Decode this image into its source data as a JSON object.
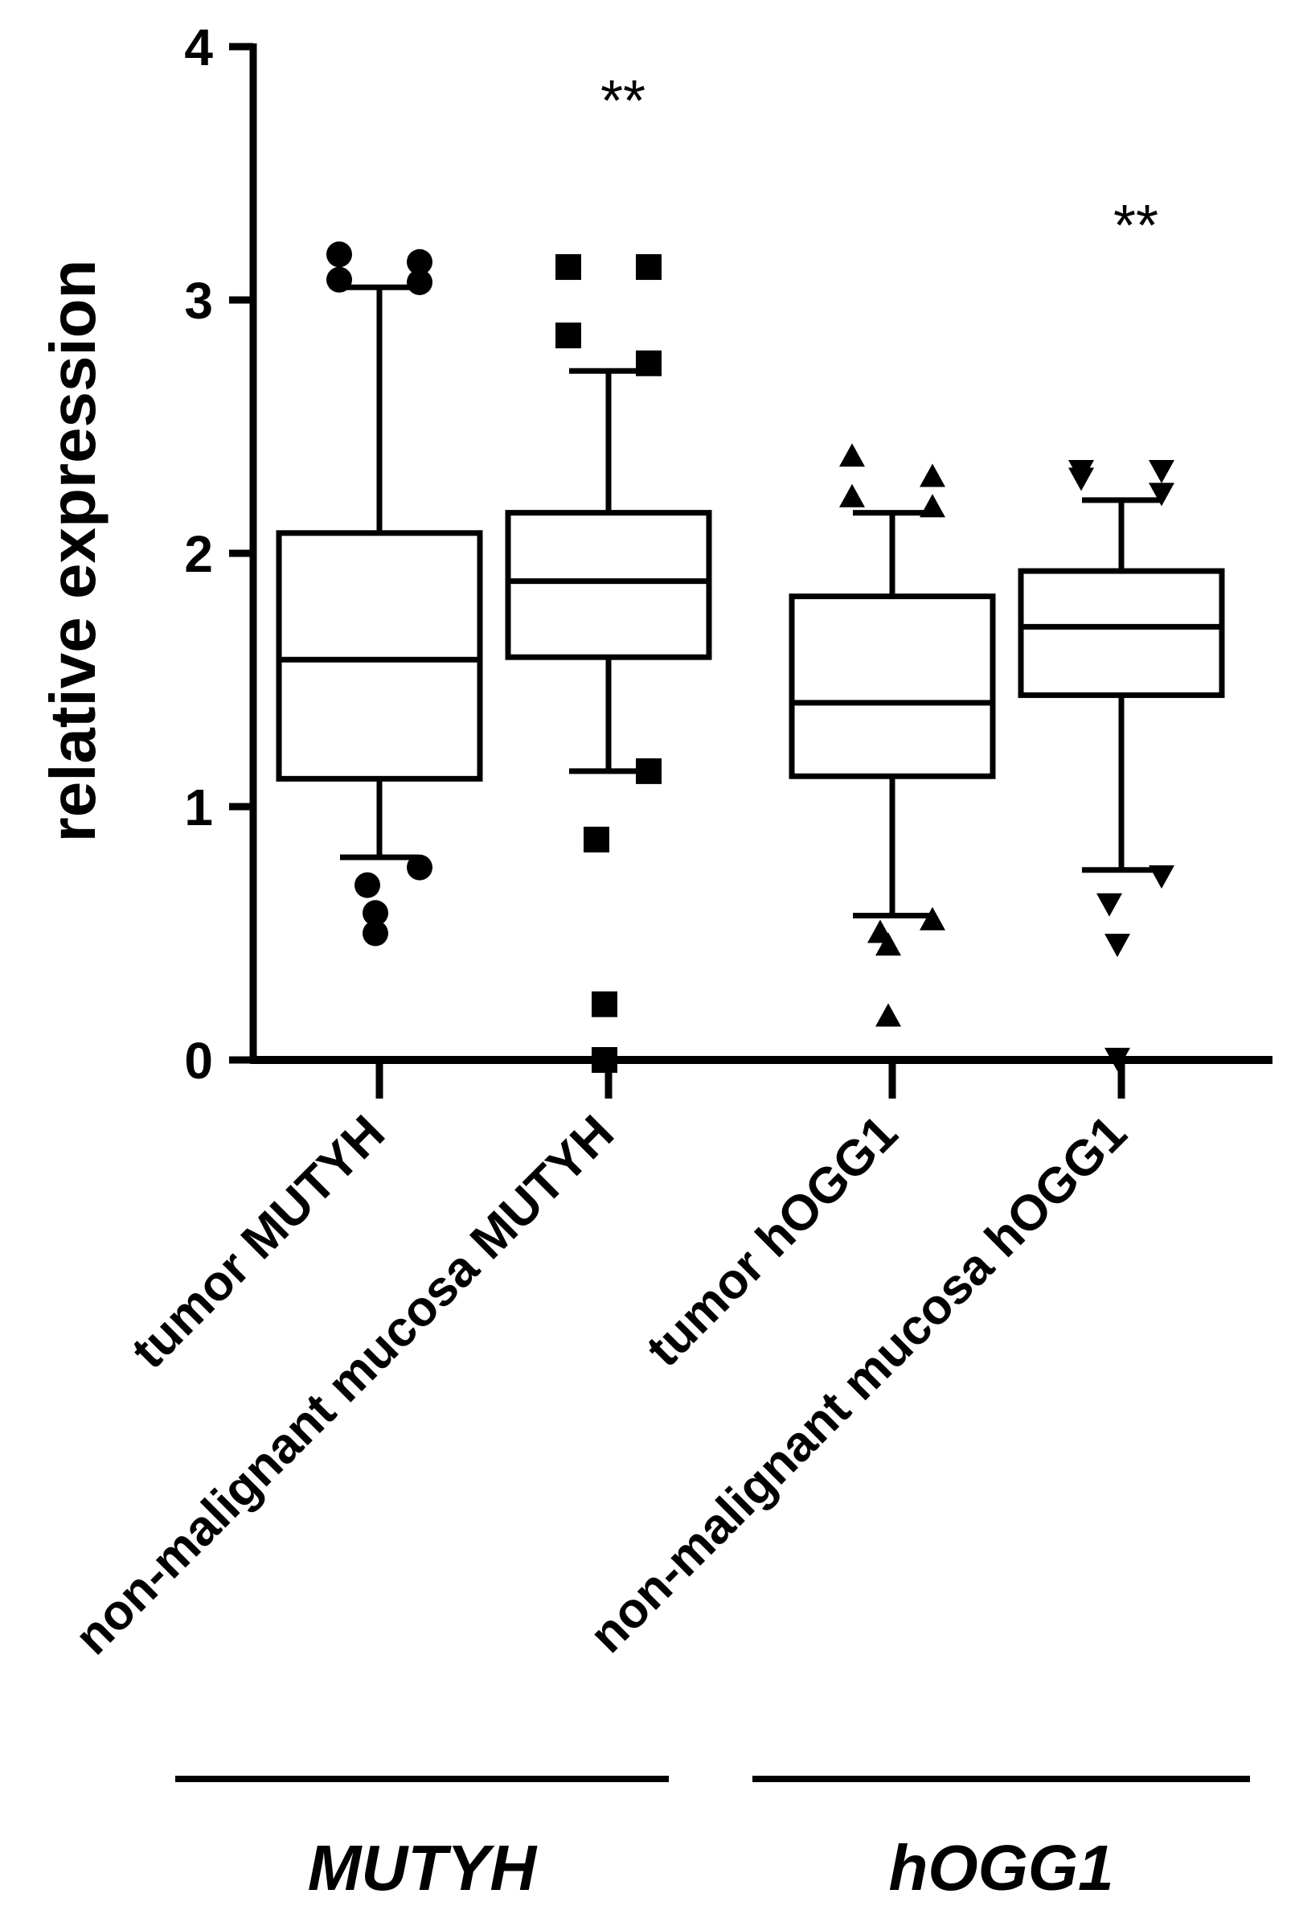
{
  "chart_data": {
    "type": "box",
    "ylabel": "relative expression",
    "ylim": [
      0,
      4
    ],
    "yticks": [
      0,
      1,
      2,
      3,
      4
    ],
    "grid": false,
    "legend": "none",
    "categories": [
      "tumor MUTYH",
      "non-malignant mucosa MUTYH",
      "tumor hOGG1",
      "non-malignant mucosa hOGG1"
    ],
    "boxes": [
      {
        "name": "tumor MUTYH",
        "marker": "circle",
        "whisker_low": 0.8,
        "q1": 1.11,
        "median": 1.58,
        "q3": 2.08,
        "whisker_high": 3.05,
        "outliers": [
          3.18,
          3.15,
          3.08,
          3.07,
          0.76,
          0.69,
          0.58,
          0.5
        ],
        "annotation": ""
      },
      {
        "name": "non-malignant mucosa MUTYH",
        "marker": "square",
        "whisker_low": 1.14,
        "q1": 1.59,
        "median": 1.89,
        "q3": 2.16,
        "whisker_high": 2.72,
        "outliers": [
          3.13,
          3.13,
          2.86,
          2.75,
          1.14,
          0.87,
          0.22,
          0.0
        ],
        "annotation": "**"
      },
      {
        "name": "tumor hOGG1",
        "marker": "triangle-up",
        "whisker_low": 0.57,
        "q1": 1.12,
        "median": 1.41,
        "q3": 1.83,
        "whisker_high": 2.16,
        "outliers": [
          2.38,
          2.3,
          2.22,
          2.18,
          0.55,
          0.5,
          0.45,
          0.17
        ],
        "annotation": ""
      },
      {
        "name": "non-malignant mucosa hOGG1",
        "marker": "triangle-down",
        "whisker_low": 0.75,
        "q1": 1.44,
        "median": 1.71,
        "q3": 1.93,
        "whisker_high": 2.21,
        "outliers": [
          2.33,
          2.33,
          2.3,
          2.24,
          0.73,
          0.62,
          0.46,
          0.01
        ],
        "annotation": "**"
      }
    ],
    "groups": [
      {
        "label": "MUTYH",
        "categories": [
          0,
          1
        ]
      },
      {
        "label": "hOGG1",
        "categories": [
          2,
          3
        ]
      }
    ]
  }
}
